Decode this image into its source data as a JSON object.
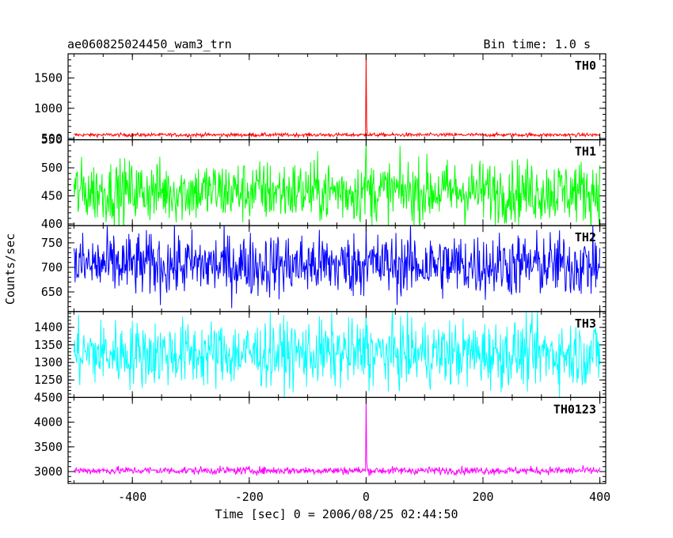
{
  "chart_data": {
    "type": "line",
    "title": "ae060825024450_wam3_trn",
    "bin_time_label": "Bin time: 1.0 s",
    "xlabel": "Time [sec] 0 = 2006/08/25 02:44:50",
    "ylabel": "Counts/sec",
    "xlim": [
      -510,
      410
    ],
    "x_ticks": [
      -400,
      -200,
      0,
      200,
      400
    ],
    "x_range": [
      -500,
      400
    ],
    "burst_time": 0,
    "grid": false,
    "panels": [
      {
        "name": "TH0",
        "color": "#ff0000",
        "ylim": [
          480,
          1900
        ],
        "y_ticks": [
          500,
          1000,
          1500
        ],
        "baseline": 560,
        "noise": 15,
        "burst_peak": 1900
      },
      {
        "name": "TH1",
        "color": "#00ff00",
        "ylim": [
          397,
          550
        ],
        "y_ticks": [
          400,
          450,
          500,
          550
        ],
        "baseline": 458,
        "noise": 28,
        "burst_peak": 545
      },
      {
        "name": "TH2",
        "color": "#0000ff",
        "ylim": [
          610,
          785
        ],
        "y_ticks": [
          650,
          700,
          750
        ],
        "baseline": 705,
        "noise": 33,
        "burst_peak": 780
      },
      {
        "name": "TH3",
        "color": "#00ffff",
        "ylim": [
          1200,
          1445
        ],
        "y_ticks": [
          1250,
          1300,
          1350,
          1400
        ],
        "baseline": 1325,
        "noise": 48,
        "burst_peak": 1440
      },
      {
        "name": "TH0123",
        "color": "#ff00ff",
        "ylim": [
          2760,
          4500
        ],
        "y_ticks": [
          3000,
          3500,
          4000,
          4500
        ],
        "baseline": 3020,
        "noise": 40,
        "burst_peak": 4500
      }
    ]
  }
}
